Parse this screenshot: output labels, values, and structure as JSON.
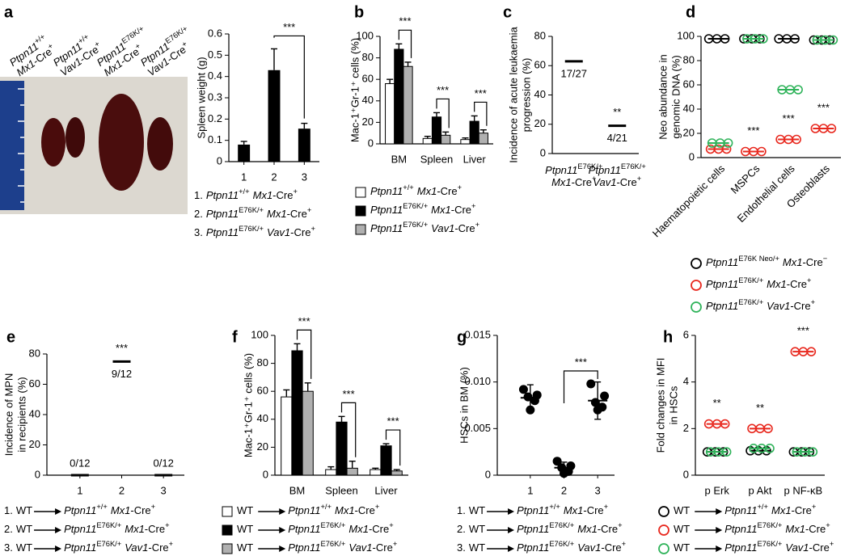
{
  "chart_data": [
    {
      "panel": "a",
      "type": "bar",
      "photo_labels": [
        {
          "gene": "Ptpn11",
          "allele": "+/+",
          "driver": "Mx1",
          "suffix": "-Cre",
          "sign": "+"
        },
        {
          "gene": "Ptpn11",
          "allele": "+/+",
          "driver": "Vav1",
          "suffix": "-Cre",
          "sign": "+"
        },
        {
          "gene": "Ptpn11",
          "allele": "E76K/+",
          "driver": "Mx1",
          "suffix": "-Cre",
          "sign": "+"
        },
        {
          "gene": "Ptpn11",
          "allele": "E76K/+",
          "driver": "Vav1",
          "suffix": "-Cre",
          "sign": "+"
        }
      ],
      "ylabel": "Spleen weight (g)",
      "categories": [
        "1",
        "2",
        "3"
      ],
      "values": [
        0.08,
        0.43,
        0.155
      ],
      "errors": [
        0.015,
        0.1,
        0.025
      ],
      "color": "#000000",
      "significance": [
        null,
        null,
        "***"
      ],
      "ylim": [
        0,
        0.6
      ],
      "yticks": [
        0,
        0.1,
        0.2,
        0.3,
        0.4,
        0.5,
        0.6
      ],
      "legend": [
        {
          "prefix": "1.",
          "gene": "Ptpn11",
          "allele": "+/+",
          "driver": "Mx1",
          "suffix": "-Cre",
          "sign": "+"
        },
        {
          "prefix": "2.",
          "gene": "Ptpn11",
          "allele": "E76K/+",
          "driver": "Mx1",
          "suffix": "-Cre",
          "sign": "+"
        },
        {
          "prefix": "3.",
          "gene": "Ptpn11",
          "allele": "E76K/+",
          "driver": "Vav1",
          "suffix": "-Cre",
          "sign": "+"
        }
      ]
    },
    {
      "panel": "b",
      "type": "grouped-bar",
      "ylabel": "Mac-1⁺Gr-1⁺ cells (%)",
      "categories": [
        "BM",
        "Spleen",
        "Liver"
      ],
      "series": [
        {
          "name": {
            "gene": "Ptpn11",
            "allele": "+/+",
            "driver": "Mx1",
            "suffix": "-Cre",
            "sign": "+"
          },
          "color": "#ffffff",
          "values": [
            56,
            5,
            4
          ],
          "errors": [
            4,
            2,
            1.5
          ]
        },
        {
          "name": {
            "gene": "Ptpn11",
            "allele": "E76K/+",
            "driver": "Mx1",
            "suffix": "-Cre",
            "sign": "+"
          },
          "color": "#000000",
          "values": [
            88,
            25,
            21
          ],
          "errors": [
            5,
            4,
            5
          ]
        },
        {
          "name": {
            "gene": "Ptpn11",
            "allele": "E76K/+",
            "driver": "Vav1",
            "suffix": "-Cre",
            "sign": "+"
          },
          "color": "#b0b0b0",
          "values": [
            72,
            8,
            10
          ],
          "errors": [
            4,
            3,
            3
          ]
        }
      ],
      "significance": [
        "***",
        "***",
        "***"
      ],
      "ylim": [
        0,
        100
      ],
      "yticks": [
        0,
        20,
        40,
        60,
        80,
        100
      ]
    },
    {
      "panel": "c",
      "type": "dot",
      "ylabel": [
        "Incidence of acute leukaemia",
        "progression (%)"
      ],
      "categories": [
        {
          "gene": "Ptpn11",
          "allele": "E76K/+",
          "driver": "Mx1",
          "suffix": "-Cre",
          "sign": "+"
        },
        {
          "gene": "Ptpn11",
          "allele": "E76K/+",
          "driver": "Vav1",
          "suffix": "-Cre",
          "sign": "+"
        }
      ],
      "values": [
        63,
        19
      ],
      "value_labels": [
        "17/27",
        "4/21"
      ],
      "significance": [
        null,
        "**"
      ],
      "ylim": [
        0,
        80
      ],
      "yticks": [
        0,
        20,
        40,
        60,
        80
      ]
    },
    {
      "panel": "d",
      "type": "scatter-groups",
      "ylabel": [
        "Neo abundance in",
        "genomic DNA (%)"
      ],
      "categories": [
        "Haematopoietic cells",
        "MSPCs",
        "Endothelial cells",
        "Osteoblasts"
      ],
      "series": [
        {
          "name": {
            "gene": "Ptpn11",
            "allele": "E76K Neo/+",
            "driver": "Mx1",
            "suffix": "-Cre",
            "sign": "−"
          },
          "color": "#000000",
          "values": [
            98,
            98,
            98,
            97
          ]
        },
        {
          "name": {
            "gene": "Ptpn11",
            "allele": "E76K/+",
            "driver": "Mx1",
            "suffix": "-Cre",
            "sign": "+"
          },
          "color": "#e8281e",
          "values": [
            7,
            5,
            15,
            24
          ]
        },
        {
          "name": {
            "gene": "Ptpn11",
            "allele": "E76K/+",
            "driver": "Vav1",
            "suffix": "-Cre",
            "sign": "+"
          },
          "color": "#2fb35a",
          "values": [
            12,
            98,
            56,
            97
          ]
        }
      ],
      "significance": [
        null,
        "***",
        "***",
        "***"
      ],
      "ylim": [
        0,
        100
      ],
      "yticks": [
        0,
        20,
        40,
        60,
        80,
        100
      ]
    },
    {
      "panel": "e",
      "type": "dot",
      "ylabel": [
        "Incidence of MPN",
        "in recipients (%)"
      ],
      "categories": [
        "1",
        "2",
        "3"
      ],
      "values": [
        0,
        75,
        0
      ],
      "value_labels": [
        "0/12",
        "9/12",
        "0/12"
      ],
      "significance": [
        null,
        "***",
        null
      ],
      "ylim": [
        0,
        80
      ],
      "yticks": [
        0,
        20,
        40,
        60,
        80
      ],
      "legend": [
        {
          "prefix": "1.",
          "donor": "WT",
          "gene": "Ptpn11",
          "allele": "+/+",
          "driver": "Mx1",
          "suffix": "-Cre",
          "sign": "+"
        },
        {
          "prefix": "2.",
          "donor": "WT",
          "gene": "Ptpn11",
          "allele": "E76K/+",
          "driver": "Mx1",
          "suffix": "-Cre",
          "sign": "+"
        },
        {
          "prefix": "3.",
          "donor": "WT",
          "gene": "Ptpn11",
          "allele": "E76K/+",
          "driver": "Vav1",
          "suffix": "-Cre",
          "sign": "+"
        }
      ]
    },
    {
      "panel": "f",
      "type": "grouped-bar",
      "ylabel": "Mac-1⁺Gr-1⁺ cells (%)",
      "categories": [
        "BM",
        "Spleen",
        "Liver"
      ],
      "series": [
        {
          "name": {
            "donor": "WT",
            "gene": "Ptpn11",
            "allele": "+/+",
            "driver": "Mx1",
            "suffix": "-Cre",
            "sign": "+"
          },
          "color": "#ffffff",
          "values": [
            56,
            4,
            4
          ],
          "errors": [
            5,
            2,
            1
          ]
        },
        {
          "name": {
            "donor": "WT",
            "gene": "Ptpn11",
            "allele": "E76K/+",
            "driver": "Mx1",
            "suffix": "-Cre",
            "sign": "+"
          },
          "color": "#000000",
          "values": [
            89,
            38,
            21
          ],
          "errors": [
            5,
            4,
            1.5
          ]
        },
        {
          "name": {
            "donor": "WT",
            "gene": "Ptpn11",
            "allele": "E76K/+",
            "driver": "Vav1",
            "suffix": "-Cre",
            "sign": "+"
          },
          "color": "#b0b0b0",
          "values": [
            60,
            5,
            3
          ],
          "errors": [
            6,
            5,
            1
          ]
        }
      ],
      "significance": [
        "***",
        "***",
        "***"
      ],
      "ylim": [
        0,
        100
      ],
      "yticks": [
        0,
        20,
        40,
        60,
        80,
        100
      ]
    },
    {
      "panel": "g",
      "type": "scatter",
      "ylabel": "HSCs in BM (%)",
      "categories": [
        "1",
        "2",
        "3"
      ],
      "points": [
        [
          0.0092,
          0.0086,
          0.0084,
          0.008,
          0.007
        ],
        [
          0.0015,
          0.001,
          0.0008,
          0.0004,
          0.0002
        ],
        [
          0.0098,
          0.0085,
          0.0078,
          0.0073,
          0.007
        ]
      ],
      "values": [
        0.0083,
        0.0008,
        0.008
      ],
      "errors": [
        0.0014,
        0.0006,
        0.002
      ],
      "significance": [
        null,
        null,
        "***"
      ],
      "ylim": [
        0,
        0.015
      ],
      "yticks": [
        0,
        0.005,
        {
          "value": 0.01,
          "label": "0.010"
        },
        0.015
      ],
      "legend": [
        {
          "prefix": "1.",
          "donor": "WT",
          "gene": "Ptpn11",
          "allele": "+/+",
          "driver": "Mx1",
          "suffix": "-Cre",
          "sign": "+"
        },
        {
          "prefix": "2.",
          "donor": "WT",
          "gene": "Ptpn11",
          "allele": "E76K/+",
          "driver": "Mx1",
          "suffix": "-Cre",
          "sign": "+"
        },
        {
          "prefix": "3.",
          "donor": "WT",
          "gene": "Ptpn11",
          "allele": "E76K/+",
          "driver": "Vav1",
          "suffix": "-Cre",
          "sign": "+"
        }
      ]
    },
    {
      "panel": "h",
      "type": "scatter-groups",
      "ylabel": [
        "Fold changes in MFI",
        "in HSCs"
      ],
      "categories": [
        "p Erk",
        "p Akt",
        "p NF-κB"
      ],
      "series": [
        {
          "name": {
            "donor": "WT",
            "gene": "Ptpn11",
            "allele": "+/+",
            "driver": "Mx1",
            "suffix": "-Cre",
            "sign": "+"
          },
          "color": "#000000",
          "values": [
            1,
            1.05,
            1
          ]
        },
        {
          "name": {
            "donor": "WT",
            "gene": "Ptpn11",
            "allele": "E76K/+",
            "driver": "Mx1",
            "suffix": "-Cre",
            "sign": "+"
          },
          "color": "#e8281e",
          "values": [
            2.2,
            2.0,
            5.3
          ]
        },
        {
          "name": {
            "donor": "WT",
            "gene": "Ptpn11",
            "allele": "E76K/+",
            "driver": "Vav1",
            "suffix": "-Cre",
            "sign": "+"
          },
          "color": "#2fb35a",
          "values": [
            1.0,
            1.15,
            1.0
          ]
        }
      ],
      "significance": [
        "**",
        "**",
        "***"
      ],
      "ylim": [
        0,
        6
      ],
      "yticks": [
        0,
        2,
        4,
        6
      ]
    }
  ]
}
